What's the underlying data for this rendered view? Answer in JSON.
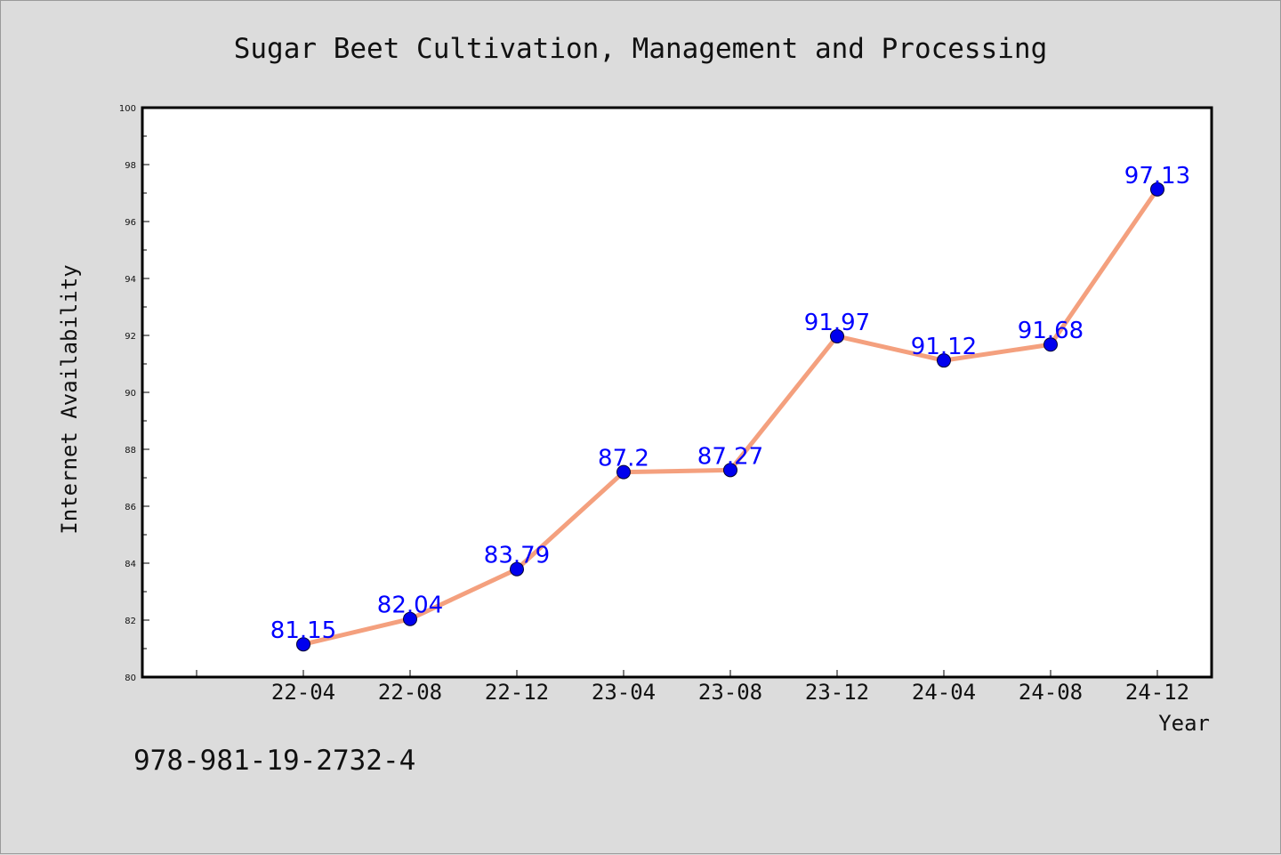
{
  "chart_data": {
    "type": "line",
    "title": "Sugar Beet Cultivation, Management and Processing",
    "xlabel": "Year",
    "ylabel": "Internet Availability",
    "categories": [
      "22-04",
      "22-08",
      "22-12",
      "23-04",
      "23-08",
      "23-12",
      "24-04",
      "24-08",
      "24-12"
    ],
    "series": [
      {
        "values": [
          81.15,
          82.04,
          83.79,
          87.2,
          87.27,
          91.97,
          91.12,
          91.68,
          97.13
        ],
        "labels": [
          "81.15",
          "82.04",
          "83.79",
          "87.2",
          "87.27",
          "91.97",
          "91.12",
          "91.68",
          "97.13"
        ],
        "line_color": "#f4a07e",
        "marker_color": "#0000ee"
      }
    ],
    "ylim": [
      80,
      100
    ],
    "yticks": [
      "80",
      "82",
      "84",
      "86",
      "88",
      "90",
      "92",
      "94",
      "96",
      "98",
      "100"
    ],
    "grid": false,
    "legend": "none",
    "data_label_color": "#0000ff"
  },
  "footer": {
    "isbn": "978-981-19-2732-4"
  }
}
